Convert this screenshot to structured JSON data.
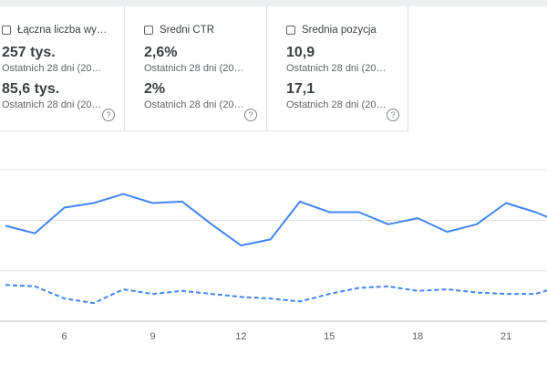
{
  "cards": [
    {
      "label": "Łączna liczba wy…",
      "value1": "257 tys.",
      "sub1": "Ostatnich 28 dni (20…",
      "value2": "85,6 tys.",
      "sub2": "Ostatnich 28 dni (20…",
      "help": "?"
    },
    {
      "label": "Średni CTR",
      "value1": "2,6%",
      "sub1": "Ostatnich 28 dni (20…",
      "value2": "2%",
      "sub2": "Ostatnich 28 dni (20…",
      "help": "?"
    },
    {
      "label": "Średnia pozycja",
      "value1": "10,9",
      "sub1": "Ostatnich 28 dni (20…",
      "value2": "17,1",
      "sub2": "Ostatnich 28 dni (20…",
      "help": "?"
    }
  ],
  "chart_data": {
    "type": "line",
    "x": [
      4,
      5,
      6,
      7,
      8,
      9,
      10,
      11,
      12,
      13,
      14,
      15,
      16,
      17,
      18,
      19,
      20,
      21,
      22,
      23,
      24
    ],
    "xticks": [
      "6",
      "9",
      "12",
      "15",
      "18",
      "21"
    ],
    "xtick_values": [
      6,
      9,
      12,
      15,
      18,
      21
    ],
    "series": [
      {
        "style": "solid",
        "color": "#4285f4",
        "values": [
          63,
          58,
          75,
          78,
          84,
          78,
          79,
          64,
          50,
          54,
          79,
          72,
          72,
          64,
          68,
          59,
          64,
          78,
          72,
          64,
          69
        ]
      },
      {
        "style": "dashed",
        "color": "#4285f4",
        "values": [
          24,
          23,
          15,
          12,
          21,
          18,
          20,
          18,
          16,
          15,
          13,
          18,
          22,
          23,
          20,
          21,
          19,
          18,
          18,
          24,
          23
        ]
      }
    ],
    "ylim": [
      0,
      100
    ],
    "grid": true
  }
}
